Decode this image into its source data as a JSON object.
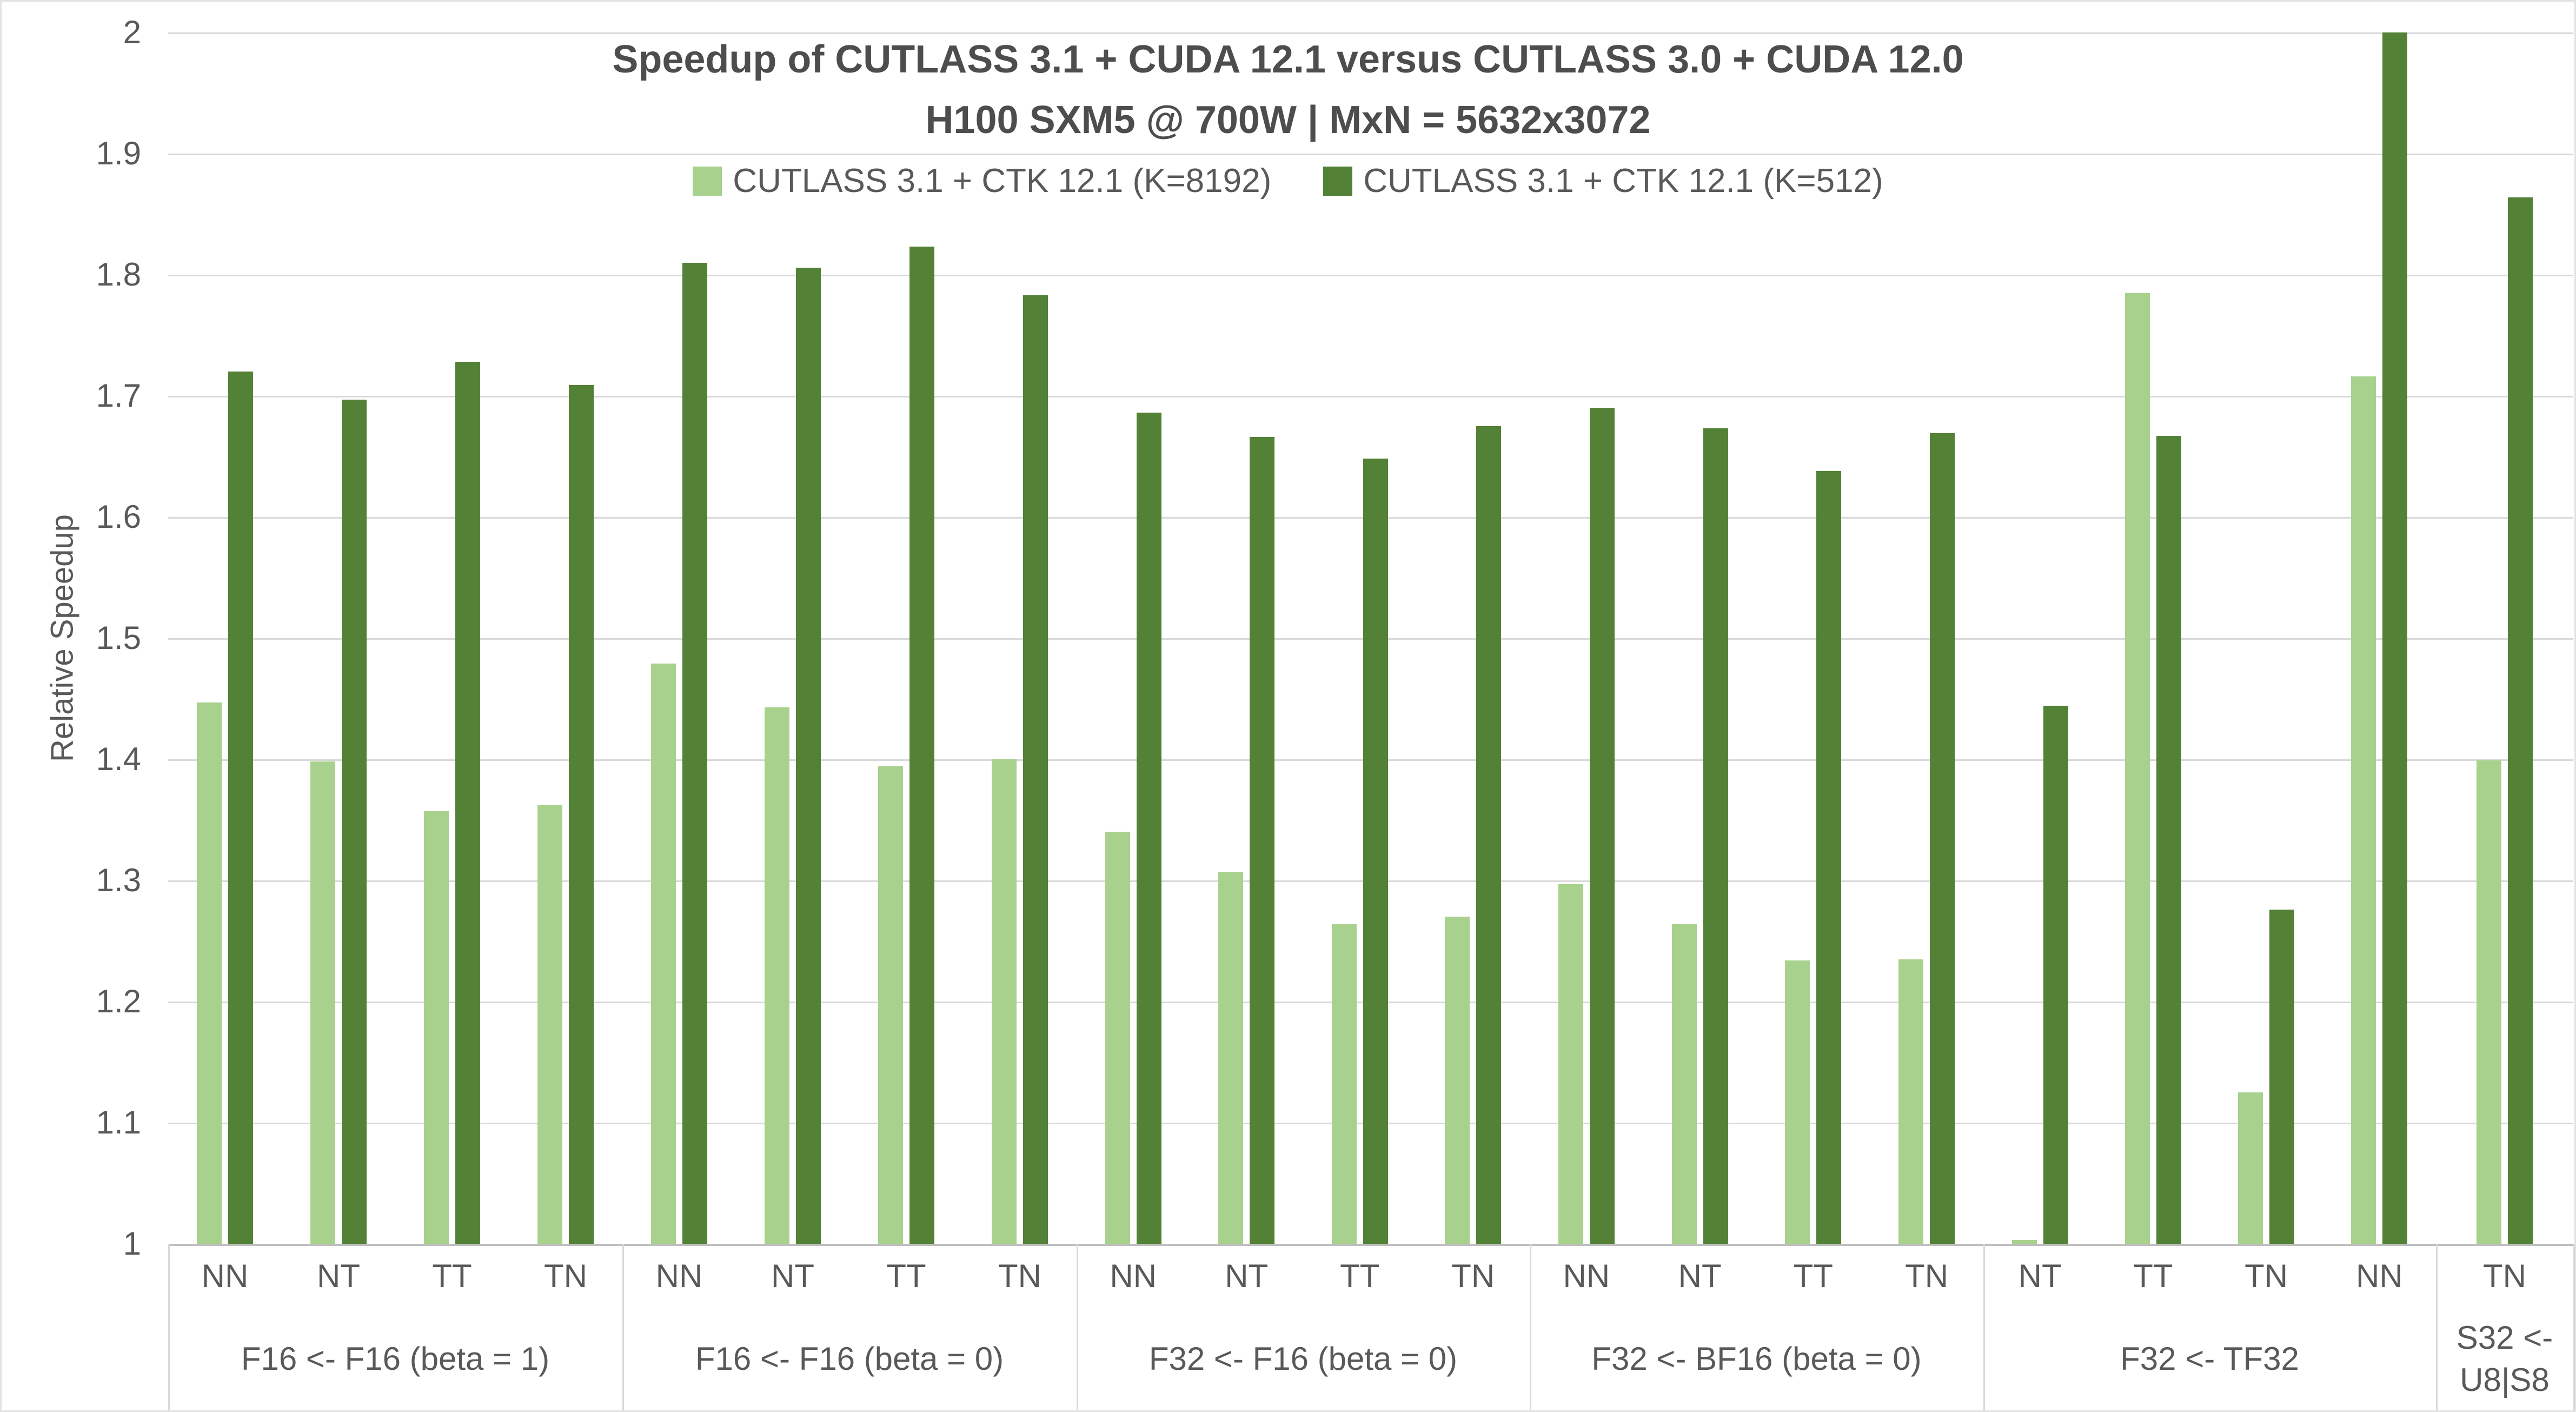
{
  "chart": {
    "title_line1": "Speedup of CUTLASS 3.1 + CUDA 12.1 versus CUTLASS 3.0 + CUDA 12.0",
    "title_line2": "H100 SXM5 @ 700W | MxN = 5632x3072",
    "y_axis_title": "Relative Speedup"
  },
  "chart_data": {
    "type": "bar",
    "title": "Speedup of CUTLASS 3.1 + CUDA 12.1 versus CUTLASS 3.0 + CUDA 12.0",
    "subtitle": "H100 SXM5 @ 700W | MxN = 5632x3072",
    "ylabel": "Relative Speedup",
    "xlabel": "",
    "ylim": [
      1,
      2
    ],
    "ytick_step": 0.1,
    "ytick_labels": [
      "2",
      "1.9",
      "1.8",
      "1.7",
      "1.6",
      "1.5",
      "1.4",
      "1.3",
      "1.2",
      "1.1",
      "1"
    ],
    "grid": true,
    "legend_position": "top-center",
    "series": [
      {
        "id": "k8192",
        "name": "CUTLASS 3.1 + CTK 12.1 (K=8192)",
        "color": "#a9d18e"
      },
      {
        "id": "k512",
        "name": "CUTLASS 3.1 + CTK 12.1 (K=512)",
        "color": "#538135"
      }
    ],
    "colors": {
      "gridline": "#d9d9d9",
      "baseline": "#bfbfbf",
      "text": "#595959",
      "title_text": "#4d4d4d",
      "border": "#e3e3e3",
      "background": "#ffffff"
    },
    "groups": [
      {
        "label": "F16 <- F16 (beta = 1)",
        "categories": [
          "NN",
          "NT",
          "TT",
          "TN"
        ],
        "k8192": [
          1.447,
          1.398,
          1.357,
          1.362
        ],
        "k512": [
          1.72,
          1.697,
          1.728,
          1.709
        ]
      },
      {
        "label": "F16 <- F16 (beta = 0)",
        "categories": [
          "NN",
          "NT",
          "TT",
          "TN"
        ],
        "k8192": [
          1.479,
          1.443,
          1.394,
          1.4
        ],
        "k512": [
          1.81,
          1.806,
          1.823,
          1.783
        ]
      },
      {
        "label": "F32 <- F16 (beta = 0)",
        "categories": [
          "NN",
          "NT",
          "TT",
          "TN"
        ],
        "k8192": [
          1.34,
          1.307,
          1.264,
          1.27
        ],
        "k512": [
          1.686,
          1.666,
          1.648,
          1.675
        ]
      },
      {
        "label": "F32 <- BF16 (beta = 0)",
        "categories": [
          "NN",
          "NT",
          "TT",
          "TN"
        ],
        "k8192": [
          1.297,
          1.264,
          1.234,
          1.235
        ],
        "k512": [
          1.69,
          1.673,
          1.638,
          1.669
        ]
      },
      {
        "label": "F32 <- TF32",
        "categories": [
          "NT",
          "TT",
          "TN",
          "NN"
        ],
        "k8192": [
          1.003,
          1.785,
          1.125,
          1.716
        ],
        "k512": [
          1.444,
          1.667,
          1.276,
          2.0
        ]
      },
      {
        "label": "S32 <- U8|S8",
        "label_lines": [
          "S32 <-",
          "U8|S8"
        ],
        "categories": [
          "TN"
        ],
        "k8192": [
          1.399
        ],
        "k512": [
          1.864
        ]
      }
    ]
  }
}
